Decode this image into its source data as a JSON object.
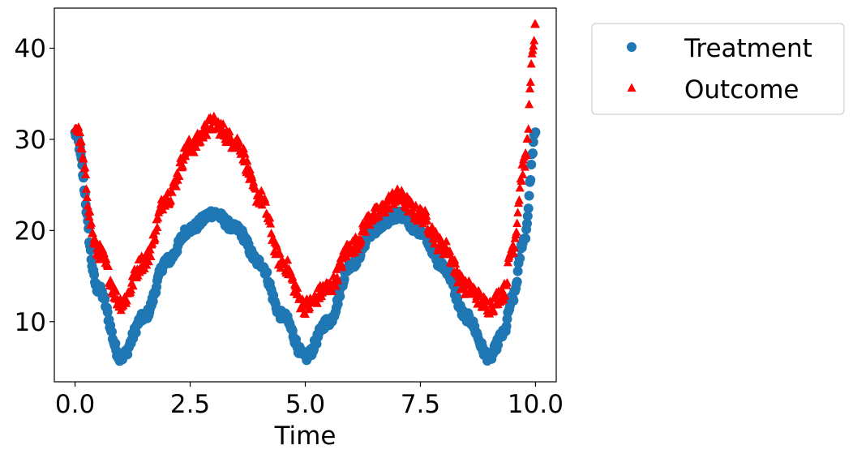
{
  "chart_data": {
    "type": "scatter",
    "title": "",
    "xlabel": "Time",
    "ylabel": "",
    "xlim": [
      -0.45,
      10.45
    ],
    "ylim": [
      3.4,
      44.4
    ],
    "xticks": [
      "0.0",
      "2.5",
      "5.0",
      "7.5",
      "10.0"
    ],
    "yticks": [
      "10",
      "20",
      "30",
      "40"
    ],
    "grid": false,
    "legend_position": "outside upper-right",
    "series": [
      {
        "name": "Treatment",
        "marker": "circle",
        "color": "#1f77b4",
        "x_range": [
          0,
          10
        ],
        "noise": 0.5,
        "points": [
          [
            0.0,
            30.6
          ],
          [
            0.5,
            13.6
          ],
          [
            1.0,
            6.1
          ],
          [
            1.5,
            10.5
          ],
          [
            2.0,
            16.7
          ],
          [
            2.5,
            20.2
          ],
          [
            3.0,
            21.9
          ],
          [
            3.5,
            20.2
          ],
          [
            4.0,
            16.5
          ],
          [
            4.5,
            10.7
          ],
          [
            5.0,
            6.1
          ],
          [
            5.5,
            10.0
          ],
          [
            6.0,
            16.3
          ],
          [
            6.5,
            20.0
          ],
          [
            7.0,
            21.7
          ],
          [
            7.5,
            20.0
          ],
          [
            8.0,
            16.0
          ],
          [
            8.5,
            10.5
          ],
          [
            9.0,
            6.1
          ],
          [
            9.3,
            8.6
          ],
          [
            9.5,
            12.5
          ],
          [
            9.75,
            19.0
          ],
          [
            10.0,
            30.5
          ]
        ]
      },
      {
        "name": "Outcome",
        "marker": "triangle",
        "color": "#ff0000",
        "x_range": [
          0,
          10
        ],
        "noise": 0.9,
        "points": [
          [
            0.0,
            31.5
          ],
          [
            0.5,
            17.7
          ],
          [
            1.0,
            12.1
          ],
          [
            1.5,
            16.6
          ],
          [
            2.0,
            23.7
          ],
          [
            2.5,
            29.2
          ],
          [
            3.0,
            31.7
          ],
          [
            3.5,
            29.7
          ],
          [
            4.0,
            23.7
          ],
          [
            4.5,
            16.5
          ],
          [
            5.0,
            11.7
          ],
          [
            5.5,
            13.7
          ],
          [
            6.0,
            18.2
          ],
          [
            6.5,
            21.7
          ],
          [
            7.0,
            23.7
          ],
          [
            7.5,
            21.7
          ],
          [
            8.0,
            18.2
          ],
          [
            8.5,
            13.7
          ],
          [
            9.0,
            11.7
          ],
          [
            9.3,
            13.2
          ],
          [
            9.5,
            18.2
          ],
          [
            9.75,
            27.2
          ],
          [
            10.0,
            42.0
          ]
        ]
      }
    ]
  }
}
